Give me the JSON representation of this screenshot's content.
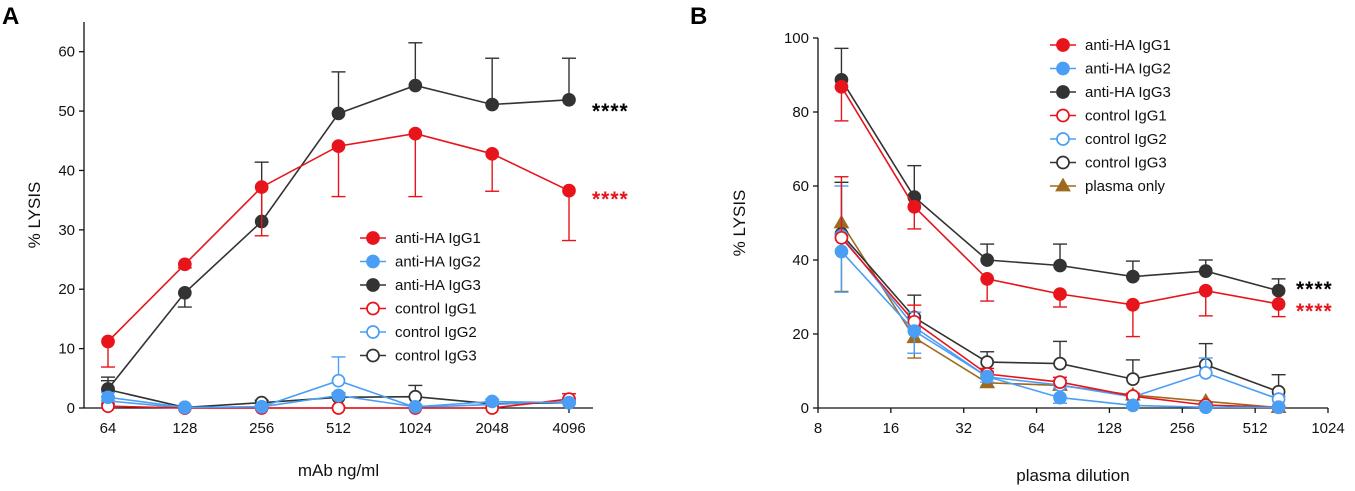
{
  "chart_data": [
    {
      "panel": "A",
      "type": "line",
      "xscale": "log2",
      "xlabel": "mAb ng/ml",
      "ylabel": "% LYSIS",
      "categories": [
        "64",
        "128",
        "256",
        "512",
        "1024",
        "2048",
        "4096"
      ],
      "x": [
        64,
        128,
        256,
        512,
        1024,
        2048,
        4096
      ],
      "xlim": [
        64,
        4096
      ],
      "ylim": [
        0,
        65
      ],
      "yticks": [
        "0",
        "10",
        "20",
        "30",
        "40",
        "50",
        "60"
      ],
      "legend_position": "center-right",
      "series": [
        {
          "name": "anti-HA IgG1",
          "color": "#e8141c",
          "filled": true,
          "marker": "circle",
          "values": [
            11.2,
            24.2,
            37.2,
            44.1,
            46.2,
            42.8,
            36.6
          ],
          "errors": [
            4.3,
            0.6,
            8.2,
            8.5,
            10.6,
            6.3,
            8.4
          ],
          "error_dir": "down"
        },
        {
          "name": "anti-HA IgG2",
          "color": "#4a9ff5",
          "filled": true,
          "marker": "circle",
          "values": [
            1.8,
            0.1,
            0.2,
            2.1,
            0.2,
            1.1,
            0.9
          ],
          "errors": [
            0.8,
            0.2,
            0.3,
            0.5,
            0.3,
            0.4,
            0.4
          ],
          "error_dir": "up"
        },
        {
          "name": "anti-HA IgG3",
          "color": "#333333",
          "filled": true,
          "marker": "circle",
          "values": [
            3.2,
            19.4,
            31.4,
            49.6,
            54.3,
            51.1,
            51.9
          ],
          "errors": [
            2.0,
            2.4,
            10.0,
            7.0,
            7.2,
            7.8,
            7.0
          ],
          "error_dir": "mixed"
        },
        {
          "name": "control IgG1",
          "color": "#e8141c",
          "filled": false,
          "marker": "circle",
          "values": [
            0.3,
            0.0,
            0.0,
            0.0,
            0.0,
            0.0,
            1.5
          ],
          "errors": [
            0.4,
            0.1,
            0.1,
            0.1,
            0.1,
            0.1,
            0.9
          ],
          "error_dir": "up"
        },
        {
          "name": "control IgG2",
          "color": "#4a9ff5",
          "filled": false,
          "marker": "circle",
          "values": [
            1.2,
            0.0,
            0.2,
            4.6,
            0.1,
            0.6,
            1.1
          ],
          "errors": [
            0.7,
            0.2,
            0.3,
            4.0,
            0.4,
            0.5,
            0.5
          ],
          "error_dir": "up"
        },
        {
          "name": "control IgG3",
          "color": "#333333",
          "filled": false,
          "marker": "circle",
          "values": [
            3.1,
            0.1,
            0.9,
            1.8,
            1.9,
            0.7,
            0.9
          ],
          "errors": [
            1.5,
            0.2,
            0.4,
            0.5,
            1.9,
            0.4,
            0.4
          ],
          "error_dir": "up"
        }
      ],
      "annotations": [
        {
          "text": "****",
          "color": "#000000",
          "series": "anti-HA IgG3"
        },
        {
          "text": "****",
          "color": "#e8141c",
          "series": "anti-HA IgG1"
        }
      ]
    },
    {
      "panel": "B",
      "type": "line",
      "xscale": "log2",
      "xlabel": "plasma dilution",
      "ylabel": "% LYSIS",
      "categories": [
        "8",
        "16",
        "32",
        "64",
        "128",
        "256",
        "512",
        "1024"
      ],
      "xticks": [
        8,
        16,
        32,
        64,
        128,
        256,
        512,
        1024
      ],
      "x": [
        10,
        20,
        40,
        80,
        160,
        320,
        640
      ],
      "xlim": [
        8,
        1024
      ],
      "ylim": [
        0,
        100
      ],
      "yticks": [
        "0",
        "20",
        "40",
        "60",
        "80",
        "100"
      ],
      "legend_position": "top-right",
      "series": [
        {
          "name": "anti-HA IgG1",
          "color": "#e8141c",
          "filled": true,
          "marker": "circle",
          "values": [
            86.8,
            54.4,
            34.9,
            30.8,
            27.9,
            31.7,
            28.1
          ],
          "errors": [
            9.2,
            6.0,
            6.0,
            3.5,
            8.6,
            6.8,
            3.4
          ],
          "error_dir": "down"
        },
        {
          "name": "anti-HA IgG2",
          "color": "#4a9ff5",
          "filled": true,
          "marker": "circle",
          "values": [
            42.3,
            20.8,
            8.5,
            2.8,
            0.7,
            0.2,
            0.2
          ],
          "errors": [
            11.0,
            6.0,
            1.5,
            1.5,
            0.5,
            0.3,
            0.2
          ],
          "error_dir": "down"
        },
        {
          "name": "anti-HA IgG3",
          "color": "#333333",
          "filled": true,
          "marker": "circle",
          "values": [
            88.7,
            57.0,
            40.0,
            38.5,
            35.5,
            37.0,
            31.7
          ],
          "errors": [
            8.5,
            8.5,
            4.3,
            5.8,
            4.2,
            3.0,
            3.2
          ],
          "error_dir": "up"
        },
        {
          "name": "control IgG1",
          "color": "#e8141c",
          "filled": false,
          "marker": "circle",
          "values": [
            46.0,
            23.3,
            9.2,
            7.0,
            3.2,
            0.8,
            0.2
          ],
          "errors": [
            16.5,
            4.5,
            1.5,
            1.3,
            0.8,
            0.4,
            0.2
          ],
          "error_dir": "up"
        },
        {
          "name": "control IgG2",
          "color": "#4a9ff5",
          "filled": false,
          "marker": "circle",
          "values": [
            46.5,
            21.9,
            8.4,
            6.2,
            3.0,
            9.5,
            2.4
          ],
          "errors": [
            13.5,
            4.0,
            1.5,
            1.3,
            0.8,
            4.0,
            0.8
          ],
          "error_dir": "up"
        },
        {
          "name": "control IgG3",
          "color": "#333333",
          "filled": false,
          "marker": "circle",
          "values": [
            47.0,
            24.5,
            12.4,
            12.0,
            7.8,
            11.7,
            4.4
          ],
          "errors": [
            14.0,
            6.0,
            2.8,
            6.0,
            5.2,
            5.7,
            4.6
          ],
          "error_dir": "up"
        },
        {
          "name": "plasma only",
          "color": "#9c6b1f",
          "filled": true,
          "marker": "triangle",
          "values": [
            50.0,
            19.0,
            6.8,
            6.1,
            3.5,
            1.8,
            0.1
          ],
          "errors": [
            18.5,
            5.5,
            1.2,
            1.0,
            0.6,
            0.4,
            0.2
          ],
          "error_dir": "down"
        }
      ],
      "annotations": [
        {
          "text": "****",
          "color": "#000000",
          "series": "anti-HA IgG3"
        },
        {
          "text": "****",
          "color": "#e8141c",
          "series": "anti-HA IgG1"
        }
      ]
    }
  ]
}
